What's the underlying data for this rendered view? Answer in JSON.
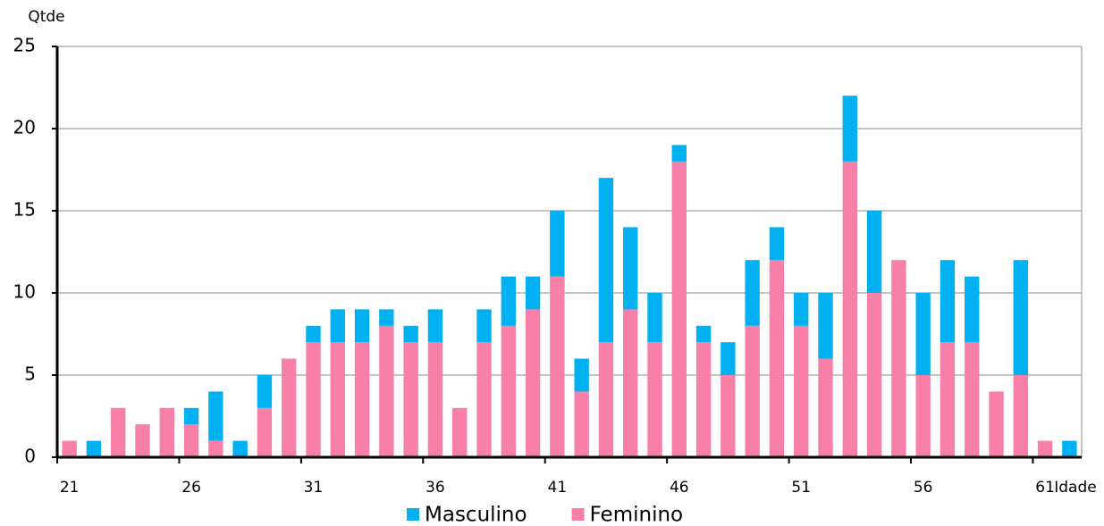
{
  "chart_data": {
    "type": "stacked_bar",
    "x_label": "Idade",
    "y_label": "Qtde",
    "categories": [
      "21",
      null,
      null,
      null,
      null,
      "26",
      null,
      null,
      null,
      null,
      "31",
      null,
      null,
      null,
      null,
      "36",
      null,
      null,
      null,
      null,
      "41",
      null,
      null,
      null,
      null,
      "46",
      null,
      null,
      null,
      null,
      "51",
      null,
      null,
      null,
      null,
      "56",
      null,
      null,
      null,
      null,
      "61",
      null
    ],
    "series": [
      {
        "name": "Feminino",
        "color": "#f77fa8",
        "values": [
          1,
          0,
          3,
          2,
          3,
          2,
          1,
          0,
          3,
          6,
          7,
          7,
          7,
          8,
          7,
          7,
          3,
          7,
          8,
          9,
          11,
          4,
          7,
          9,
          7,
          18,
          7,
          5,
          8,
          12,
          8,
          6,
          18,
          10,
          12,
          5,
          7,
          7,
          4,
          5,
          1,
          0
        ]
      },
      {
        "name": "Masculino",
        "color": "#00b0f0",
        "values": [
          0,
          1,
          0,
          0,
          0,
          1,
          3,
          1,
          2,
          0,
          1,
          2,
          2,
          1,
          1,
          2,
          0,
          2,
          3,
          2,
          4,
          2,
          10,
          5,
          3,
          1,
          1,
          2,
          4,
          2,
          2,
          4,
          4,
          5,
          0,
          5,
          5,
          4,
          0,
          7,
          0,
          1
        ]
      }
    ],
    "legend_order": [
      "Masculino",
      "Feminino"
    ],
    "ylim": [
      0,
      25
    ],
    "yticks": [
      0,
      5,
      10,
      15,
      20,
      25
    ],
    "grid": true
  }
}
